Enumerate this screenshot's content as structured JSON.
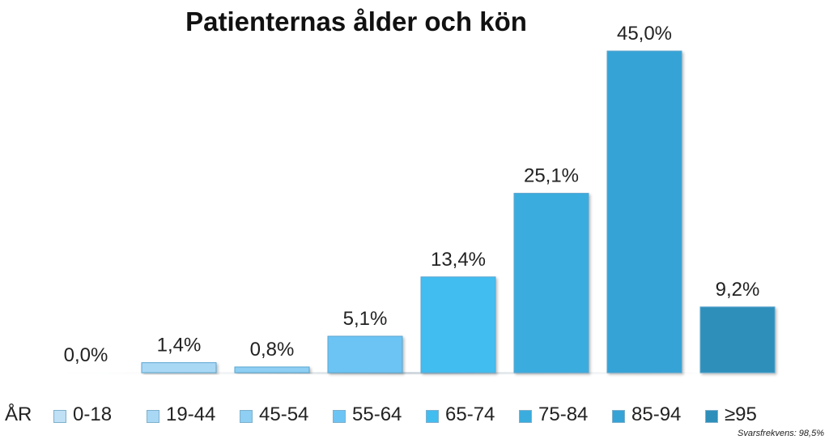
{
  "chart_data": {
    "type": "bar",
    "title": "Patienternas ålder och kön",
    "categories": [
      "0-18",
      "19-44",
      "45-54",
      "55-64",
      "65-74",
      "75-84",
      "85-94",
      "≥95"
    ],
    "values": [
      0.0,
      1.4,
      0.8,
      5.1,
      13.4,
      25.1,
      45.0,
      9.2
    ],
    "value_labels": [
      "0,0%",
      "1,4%",
      "0,8%",
      "5,1%",
      "13,4%",
      "25,1%",
      "45,0%",
      "9,2%"
    ],
    "colors": [
      "#bfe0f5",
      "#a9d8f5",
      "#8ecff3",
      "#6cc4f4",
      "#42bdf0",
      "#3aacde",
      "#35a3d6",
      "#2d8fba"
    ],
    "ylim": [
      0,
      45
    ],
    "grid": false,
    "legend_placement": "bottom",
    "legend_title": "ÅR"
  },
  "note": "Svarsfrekvens: 98,5%"
}
